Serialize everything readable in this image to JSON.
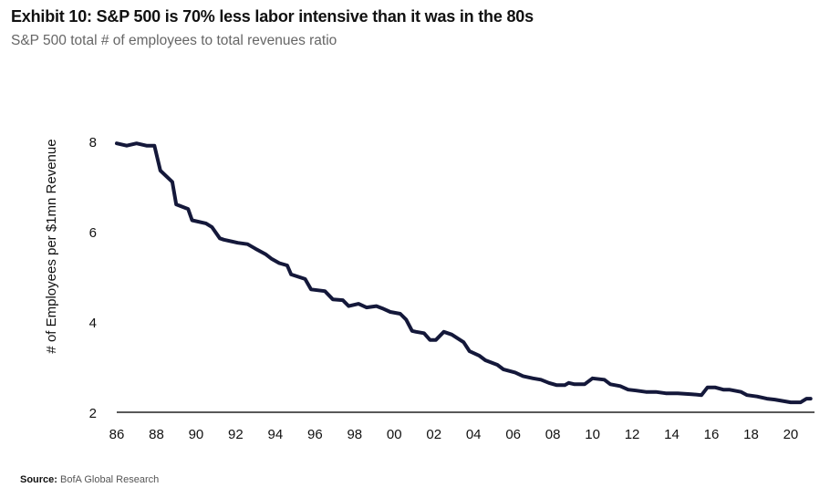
{
  "title": "Exhibit 10: S&P 500 is 70% less labor intensive than it was in the 80s",
  "subtitle": "S&P 500 total # of employees to total revenues ratio",
  "source_label": "Source:",
  "source_text": "BofA Global Research",
  "chart_data": {
    "type": "line",
    "title": "Exhibit 10: S&P 500 is 70% less labor intensive than it was in the 80s",
    "subtitle": "S&P 500 total # of employees to total revenues ratio",
    "xlabel": "",
    "ylabel": "# of Employees per $1mn Revenue",
    "x_tick_labels": [
      "86",
      "88",
      "90",
      "92",
      "94",
      "96",
      "98",
      "00",
      "02",
      "04",
      "06",
      "08",
      "10",
      "12",
      "14",
      "16",
      "18",
      "20"
    ],
    "y_tick_labels": [
      "2",
      "4",
      "6",
      "8"
    ],
    "y_ticks": [
      2,
      4,
      6,
      8
    ],
    "xlim": [
      1986,
      2021.2
    ],
    "ylim": [
      2,
      8.5
    ],
    "line_color": "#14183a",
    "grid": false,
    "series": [
      {
        "x": [
          1986.0,
          1986.5,
          1987.0,
          1987.5,
          1987.9,
          1988.2,
          1988.8,
          1989.0,
          1989.6,
          1989.8,
          1990.5,
          1990.8,
          1991.2,
          1991.4,
          1992.1,
          1992.6,
          1993.0,
          1993.5,
          1993.8,
          1994.2,
          1994.6,
          1994.8,
          1995.5,
          1995.8,
          1996.5,
          1996.9,
          1997.4,
          1997.7,
          1998.2,
          1998.6,
          1999.1,
          1999.4,
          1999.8,
          2000.3,
          2000.6,
          2000.9,
          2001.1,
          2001.5,
          2001.8,
          2002.1,
          2002.5,
          2002.9,
          2003.5,
          2003.8,
          2004.3,
          2004.6,
          2005.2,
          2005.5,
          2006.1,
          2006.5,
          2007.0,
          2007.4,
          2007.8,
          2008.2,
          2008.6,
          2008.8,
          2009.1,
          2009.6,
          2010.0,
          2010.6,
          2010.9,
          2011.4,
          2011.8,
          2012.2,
          2012.7,
          2013.2,
          2013.7,
          2014.3,
          2015.0,
          2015.5,
          2015.8,
          2016.2,
          2016.6,
          2016.9,
          2017.5,
          2017.8,
          2018.3,
          2018.8,
          2019.2,
          2019.6,
          2020.0,
          2020.5,
          2020.8,
          2021.0
        ],
        "y": [
          7.95,
          7.9,
          7.95,
          7.9,
          7.9,
          7.35,
          7.1,
          6.6,
          6.5,
          6.25,
          6.18,
          6.1,
          5.85,
          5.82,
          5.75,
          5.72,
          5.62,
          5.5,
          5.4,
          5.3,
          5.25,
          5.05,
          4.95,
          4.72,
          4.68,
          4.5,
          4.48,
          4.35,
          4.4,
          4.32,
          4.35,
          4.3,
          4.22,
          4.18,
          4.05,
          3.8,
          3.78,
          3.75,
          3.6,
          3.6,
          3.78,
          3.72,
          3.55,
          3.35,
          3.25,
          3.15,
          3.05,
          2.95,
          2.88,
          2.8,
          2.75,
          2.72,
          2.65,
          2.6,
          2.6,
          2.65,
          2.62,
          2.62,
          2.75,
          2.72,
          2.62,
          2.58,
          2.5,
          2.48,
          2.45,
          2.45,
          2.42,
          2.42,
          2.4,
          2.38,
          2.55,
          2.55,
          2.5,
          2.5,
          2.45,
          2.38,
          2.35,
          2.3,
          2.28,
          2.25,
          2.22,
          2.22,
          2.3,
          2.3
        ]
      }
    ]
  }
}
